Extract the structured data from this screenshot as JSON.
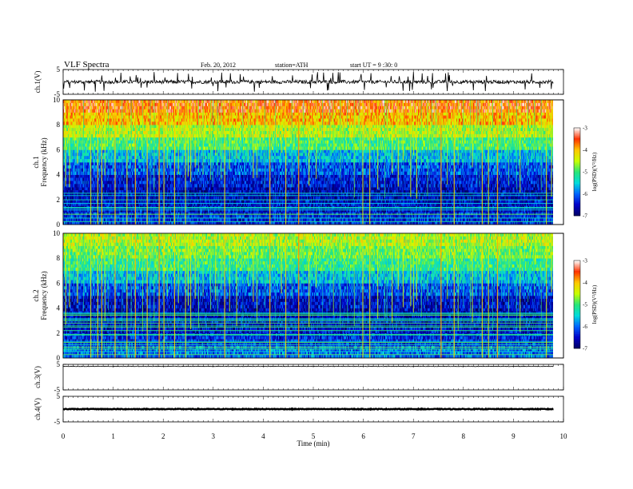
{
  "header": {
    "title": "VLF  Spectra",
    "date": "Feb. 20, 2012",
    "station": "station=ATH",
    "start": "start  UT  =   9  :30: 0"
  },
  "colors": {
    "scale": [
      "#000060",
      "#0000c8",
      "#0064ff",
      "#00dcdc",
      "#28e678",
      "#c8ff00",
      "#ffc800",
      "#ff3200",
      "#ffffff"
    ],
    "trace": "#000000"
  },
  "chart_data": [
    {
      "type": "line",
      "name": "ch1_waveform",
      "ylabel": "ch.1(V)",
      "ylim": [
        -5,
        5
      ],
      "yticks": [
        "5",
        "-5"
      ],
      "level": 0.0,
      "noise": 0.7,
      "spike_rate": 0.06
    },
    {
      "type": "heatmap",
      "name": "ch1_spectrogram",
      "ylabel_channel": "ch.1",
      "ylabel": "Frequency  (kHz)",
      "ylim": [
        0,
        10
      ],
      "yticks": [
        "0",
        "2",
        "4",
        "6",
        "8",
        "10"
      ],
      "colorbar": {
        "label": "log(PSD)(V²/Hz)",
        "range": [
          -7,
          -3
        ],
        "ticks": [
          "-3",
          "-4",
          "-5",
          "-6",
          "-7"
        ]
      },
      "x": [
        0,
        0.25,
        0.5,
        0.75,
        1,
        1.25,
        1.5,
        1.75,
        2,
        2.25,
        2.5,
        2.75,
        3,
        3.25,
        3.5,
        3.75,
        4,
        4.25,
        4.5,
        4.75,
        5,
        5.25,
        5.5,
        5.75,
        6,
        6.25,
        6.5,
        6.75,
        7,
        7.25,
        7.5,
        7.75,
        8,
        8.25,
        8.5,
        8.75,
        9,
        9.25,
        9.5,
        9.75
      ],
      "y": [
        0.5,
        1.5,
        2.5,
        3.5,
        4.5,
        5.5,
        6.5,
        7.5,
        8.5,
        9.5
      ],
      "z": [
        [
          -6.3,
          -6.3,
          -6.3,
          -6.3,
          -6.3,
          -6.3,
          -6.3,
          -6.3,
          -6.3,
          -6.3,
          -6.3,
          -6.3,
          -6.3,
          -6.3,
          -6.3,
          -6.3,
          -6.3,
          -6.3,
          -6.3,
          -6.3,
          -6.3,
          -6.3,
          -6.3,
          -6.3,
          -6.3,
          -6.3,
          -6.3,
          -6.3,
          -6.3,
          -6.3,
          -6.3,
          -6.3,
          -6.3,
          -6.3,
          -6.3,
          -6.3,
          -6.3,
          -6.3,
          -6.3,
          -6.3
        ],
        [
          -6.5,
          -6.5,
          -6.5,
          -6.5,
          -6.5,
          -6.5,
          -6.5,
          -6.5,
          -6.5,
          -6.5,
          -6.5,
          -6.5,
          -6.5,
          -6.5,
          -6.5,
          -6.5,
          -6.5,
          -6.5,
          -6.5,
          -6.5,
          -6.5,
          -6.5,
          -6.5,
          -6.5,
          -6.5,
          -6.5,
          -6.5,
          -6.5,
          -6.5,
          -6.5,
          -6.5,
          -6.5,
          -6.5,
          -6.5,
          -6.5,
          -6.5,
          -6.5,
          -6.5,
          -6.5,
          -6.5
        ],
        [
          -6.6,
          -6.6,
          -6.6,
          -6.6,
          -6.6,
          -6.6,
          -6.6,
          -6.6,
          -6.6,
          -6.6,
          -6.6,
          -6.6,
          -6.6,
          -6.6,
          -6.6,
          -6.6,
          -6.6,
          -6.6,
          -6.6,
          -6.6,
          -6.6,
          -6.6,
          -6.6,
          -6.6,
          -6.6,
          -6.6,
          -6.6,
          -6.6,
          -6.6,
          -6.6,
          -6.6,
          -6.6,
          -6.6,
          -6.6,
          -6.6,
          -6.6,
          -6.6,
          -6.6,
          -6.6,
          -6.6
        ],
        [
          -6.4,
          -6.4,
          -6.4,
          -6.4,
          -6.4,
          -6.4,
          -6.4,
          -6.4,
          -6.4,
          -6.4,
          -6.4,
          -6.4,
          -6.4,
          -6.4,
          -6.4,
          -6.4,
          -6.4,
          -6.4,
          -6.4,
          -6.4,
          -6.4,
          -6.4,
          -6.4,
          -6.4,
          -6.4,
          -6.4,
          -6.4,
          -6.4,
          -6.4,
          -6.4,
          -6.4,
          -6.4,
          -6.4,
          -6.4,
          -6.4,
          -6.4,
          -6.4,
          -6.4,
          -6.4,
          -6.4
        ],
        [
          -6.1,
          -6.1,
          -6.1,
          -6.1,
          -6.1,
          -6.1,
          -6.1,
          -6.1,
          -6.1,
          -6.1,
          -6.1,
          -6.1,
          -6.1,
          -6.1,
          -6.1,
          -6.1,
          -6.1,
          -6.1,
          -6.1,
          -6.1,
          -6.1,
          -6.1,
          -6.1,
          -6.1,
          -6.1,
          -6.1,
          -6.1,
          -6.1,
          -6.1,
          -6.1,
          -6.1,
          -6.1,
          -6.1,
          -6.1,
          -6.1,
          -6.1,
          -6.1,
          -6.1,
          -6.1,
          -6.1
        ],
        [
          -5.6,
          -5.6,
          -5.6,
          -5.6,
          -5.6,
          -5.6,
          -5.6,
          -5.6,
          -5.6,
          -5.6,
          -5.6,
          -5.6,
          -5.6,
          -5.6,
          -5.6,
          -5.6,
          -5.6,
          -5.6,
          -5.6,
          -5.6,
          -5.6,
          -5.6,
          -5.6,
          -5.6,
          -5.6,
          -5.6,
          -5.6,
          -5.6,
          -5.6,
          -5.6,
          -5.6,
          -5.6,
          -5.6,
          -5.6,
          -5.6,
          -5.6,
          -5.6,
          -5.6,
          -5.6,
          -5.6
        ],
        [
          -5.0,
          -5.0,
          -5.0,
          -5.0,
          -5.0,
          -5.0,
          -5.0,
          -5.0,
          -5.0,
          -5.0,
          -5.0,
          -5.0,
          -5.0,
          -5.0,
          -5.0,
          -5.0,
          -5.0,
          -5.0,
          -5.0,
          -5.0,
          -5.0,
          -5.0,
          -5.0,
          -5.0,
          -5.0,
          -5.0,
          -5.0,
          -5.0,
          -5.0,
          -5.0,
          -5.0,
          -5.0,
          -5.0,
          -5.0,
          -5.0,
          -5.0,
          -5.0,
          -5.0,
          -5.0,
          -5.0
        ],
        [
          -4.5,
          -4.5,
          -4.5,
          -4.5,
          -4.5,
          -4.5,
          -4.5,
          -4.5,
          -4.5,
          -4.5,
          -4.5,
          -4.5,
          -4.5,
          -4.5,
          -4.5,
          -4.5,
          -4.5,
          -4.5,
          -4.5,
          -4.5,
          -4.5,
          -4.5,
          -4.5,
          -4.5,
          -4.5,
          -4.5,
          -4.5,
          -4.5,
          -4.5,
          -4.5,
          -4.5,
          -4.5,
          -4.5,
          -4.5,
          -4.5,
          -4.5,
          -4.5,
          -4.5,
          -4.5,
          -4.5
        ],
        [
          -4.0,
          -4.0,
          -4.0,
          -4.0,
          -4.0,
          -4.0,
          -4.0,
          -4.0,
          -4.0,
          -4.0,
          -4.0,
          -4.0,
          -4.0,
          -4.0,
          -4.0,
          -4.0,
          -4.0,
          -4.0,
          -4.0,
          -4.0,
          -4.0,
          -4.0,
          -4.0,
          -4.0,
          -4.0,
          -4.0,
          -4.0,
          -4.0,
          -4.0,
          -4.0,
          -4.0,
          -4.0,
          -4.0,
          -4.0,
          -4.0,
          -4.0,
          -4.0,
          -4.0,
          -4.0,
          -4.0
        ],
        [
          -3.6,
          -3.6,
          -3.6,
          -3.6,
          -3.6,
          -3.6,
          -3.6,
          -3.6,
          -3.6,
          -3.6,
          -3.6,
          -3.6,
          -3.6,
          -3.6,
          -3.6,
          -3.6,
          -3.6,
          -3.6,
          -3.6,
          -3.6,
          -3.6,
          -3.6,
          -3.6,
          -3.6,
          -3.6,
          -3.6,
          -3.6,
          -3.6,
          -3.6,
          -3.6,
          -3.6,
          -3.6,
          -3.6,
          -3.6,
          -3.6,
          -3.6,
          -3.6,
          -3.6,
          -3.6,
          -3.6
        ]
      ]
    },
    {
      "type": "heatmap",
      "name": "ch2_spectrogram",
      "ylabel_channel": "ch.2",
      "ylabel": "Frequency  (kHz)",
      "ylim": [
        0,
        10
      ],
      "yticks": [
        "0",
        "2",
        "4",
        "6",
        "8",
        "10"
      ],
      "colorbar": {
        "label": "log(PSD)(V²/Hz)",
        "range": [
          -7,
          -3
        ],
        "ticks": [
          "-3",
          "-4",
          "-5",
          "-6",
          "-7"
        ]
      },
      "x": [
        0,
        0.25,
        0.5,
        0.75,
        1,
        1.25,
        1.5,
        1.75,
        2,
        2.25,
        2.5,
        2.75,
        3,
        3.25,
        3.5,
        3.75,
        4,
        4.25,
        4.5,
        4.75,
        5,
        5.25,
        5.5,
        5.75,
        6,
        6.25,
        6.5,
        6.75,
        7,
        7.25,
        7.5,
        7.75,
        8,
        8.25,
        8.5,
        8.75,
        9,
        9.25,
        9.5,
        9.75
      ],
      "y": [
        0.5,
        1.5,
        2.5,
        3.5,
        4.5,
        5.5,
        6.5,
        7.5,
        8.5,
        9.5
      ],
      "z": [
        [
          -6.0,
          -6.0,
          -6.0,
          -6.0,
          -6.0,
          -6.0,
          -6.0,
          -6.0,
          -6.0,
          -6.0,
          -6.0,
          -6.0,
          -6.0,
          -6.0,
          -6.0,
          -6.0,
          -6.0,
          -6.0,
          -6.0,
          -6.0,
          -6.0,
          -6.0,
          -6.0,
          -6.0,
          -6.0,
          -6.0,
          -6.0,
          -6.0,
          -6.0,
          -6.0,
          -6.0,
          -6.0,
          -6.0,
          -6.0,
          -6.0,
          -6.0,
          -6.0,
          -6.0,
          -6.0,
          -6.0
        ],
        [
          -6.3,
          -6.3,
          -6.3,
          -6.3,
          -6.3,
          -6.3,
          -6.3,
          -6.3,
          -6.3,
          -6.3,
          -6.3,
          -6.3,
          -6.3,
          -6.3,
          -6.3,
          -6.3,
          -6.3,
          -6.3,
          -6.3,
          -6.3,
          -6.3,
          -6.3,
          -6.3,
          -6.3,
          -6.3,
          -6.3,
          -6.3,
          -6.3,
          -6.3,
          -6.3,
          -6.3,
          -6.3,
          -6.3,
          -6.3,
          -6.3,
          -6.3,
          -6.3,
          -6.3,
          -6.3,
          -6.3
        ],
        [
          -6.5,
          -6.5,
          -6.5,
          -6.5,
          -6.5,
          -6.5,
          -6.5,
          -6.5,
          -6.5,
          -6.5,
          -6.5,
          -6.5,
          -6.5,
          -6.5,
          -6.5,
          -6.5,
          -6.5,
          -6.5,
          -6.5,
          -6.5,
          -6.5,
          -6.5,
          -6.5,
          -6.5,
          -6.5,
          -6.5,
          -6.5,
          -6.5,
          -6.5,
          -6.5,
          -6.5,
          -6.5,
          -6.5,
          -6.5,
          -6.5,
          -6.5,
          -6.5,
          -6.5,
          -6.5,
          -6.5
        ],
        [
          -6.6,
          -6.6,
          -6.6,
          -6.6,
          -6.6,
          -6.6,
          -6.6,
          -6.6,
          -6.6,
          -6.6,
          -6.6,
          -6.6,
          -6.6,
          -6.6,
          -6.6,
          -6.6,
          -6.6,
          -6.6,
          -6.6,
          -6.6,
          -6.6,
          -6.6,
          -6.6,
          -6.6,
          -6.6,
          -6.6,
          -6.6,
          -6.6,
          -6.6,
          -6.6,
          -6.6,
          -6.6,
          -6.6,
          -6.6,
          -6.6,
          -6.6,
          -6.6,
          -6.6,
          -6.6,
          -6.6
        ],
        [
          -6.5,
          -6.5,
          -6.5,
          -6.5,
          -6.5,
          -6.5,
          -6.5,
          -6.5,
          -6.5,
          -6.5,
          -6.5,
          -6.5,
          -6.5,
          -6.5,
          -6.5,
          -6.5,
          -6.5,
          -6.5,
          -6.5,
          -6.5,
          -6.5,
          -6.5,
          -6.5,
          -6.5,
          -6.5,
          -6.5,
          -6.5,
          -6.5,
          -6.5,
          -6.5,
          -6.5,
          -6.5,
          -6.5,
          -6.5,
          -6.5,
          -6.5,
          -6.5,
          -6.5,
          -6.5,
          -6.5
        ],
        [
          -6.1,
          -6.1,
          -6.1,
          -6.1,
          -6.1,
          -6.1,
          -6.1,
          -6.1,
          -6.1,
          -6.1,
          -6.1,
          -6.1,
          -6.1,
          -6.1,
          -6.1,
          -6.1,
          -6.1,
          -6.1,
          -6.1,
          -6.1,
          -6.1,
          -6.1,
          -6.1,
          -6.1,
          -6.1,
          -6.1,
          -6.1,
          -6.1,
          -6.1,
          -6.1,
          -6.1,
          -6.1,
          -6.1,
          -6.1,
          -6.1,
          -6.1,
          -6.1,
          -6.1,
          -6.1,
          -6.1
        ],
        [
          -5.6,
          -5.6,
          -5.6,
          -5.6,
          -5.6,
          -5.6,
          -5.6,
          -5.6,
          -5.6,
          -5.6,
          -5.6,
          -5.6,
          -5.6,
          -5.6,
          -5.6,
          -5.6,
          -5.6,
          -5.6,
          -5.6,
          -5.6,
          -5.6,
          -5.6,
          -5.6,
          -5.6,
          -5.6,
          -5.6,
          -5.6,
          -5.6,
          -5.6,
          -5.6,
          -5.6,
          -5.6,
          -5.6,
          -5.6,
          -5.6,
          -5.6,
          -5.6,
          -5.6,
          -5.6,
          -5.6
        ],
        [
          -5.1,
          -5.1,
          -5.1,
          -5.1,
          -5.1,
          -5.1,
          -5.1,
          -5.1,
          -5.1,
          -5.1,
          -5.1,
          -5.1,
          -5.1,
          -5.1,
          -5.1,
          -5.1,
          -5.1,
          -5.1,
          -5.1,
          -5.1,
          -5.1,
          -5.1,
          -5.1,
          -5.1,
          -5.1,
          -5.1,
          -5.1,
          -5.1,
          -5.1,
          -5.1,
          -5.1,
          -5.1,
          -5.1,
          -5.1,
          -5.1,
          -5.1,
          -5.1,
          -5.1,
          -5.1,
          -5.1
        ],
        [
          -4.8,
          -4.8,
          -4.8,
          -4.8,
          -4.8,
          -4.8,
          -4.8,
          -4.8,
          -4.8,
          -4.8,
          -4.8,
          -4.8,
          -4.8,
          -4.8,
          -4.8,
          -4.8,
          -4.8,
          -4.8,
          -4.8,
          -4.8,
          -4.8,
          -4.8,
          -4.8,
          -4.8,
          -4.8,
          -4.8,
          -4.8,
          -4.8,
          -4.8,
          -4.8,
          -4.8,
          -4.8,
          -4.8,
          -4.8,
          -4.8,
          -4.8,
          -4.8,
          -4.8,
          -4.8,
          -4.8
        ],
        [
          -4.5,
          -4.5,
          -4.5,
          -4.5,
          -4.5,
          -4.5,
          -4.5,
          -4.5,
          -4.5,
          -4.5,
          -4.5,
          -4.5,
          -4.5,
          -4.5,
          -4.5,
          -4.5,
          -4.5,
          -4.5,
          -4.5,
          -4.5,
          -4.5,
          -4.5,
          -4.5,
          -4.5,
          -4.5,
          -4.5,
          -4.5,
          -4.5,
          -4.5,
          -4.5,
          -4.5,
          -4.5,
          -4.5,
          -4.5,
          -4.5,
          -4.5,
          -4.5,
          -4.5,
          -4.5,
          -4.5
        ]
      ]
    },
    {
      "type": "line",
      "name": "ch3_waveform",
      "ylabel": "ch.3(V)",
      "ylim": [
        -5,
        5
      ],
      "yticks": [
        "5",
        "-5"
      ],
      "level": 4.2,
      "noise": 0.1,
      "spike_rate": 0.0
    },
    {
      "type": "line",
      "name": "ch4_waveform",
      "ylabel": "ch.4(V)",
      "ylim": [
        -5,
        5
      ],
      "yticks": [
        "5",
        "-5"
      ],
      "level": 0.0,
      "noise": 0.15,
      "spike_rate": 0.0
    }
  ],
  "time_axis": {
    "label": "Time  (min)",
    "range": [
      0,
      10
    ],
    "ticks": [
      "0",
      "1",
      "2",
      "3",
      "4",
      "5",
      "6",
      "7",
      "8",
      "9",
      "10"
    ]
  }
}
